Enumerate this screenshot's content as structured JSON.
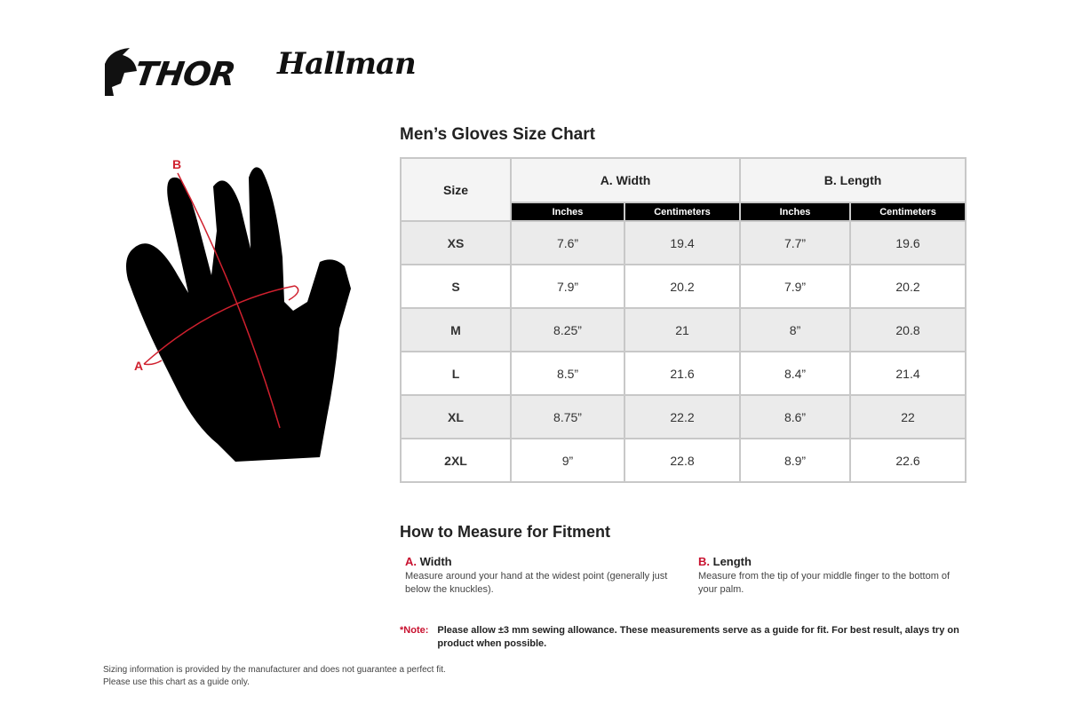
{
  "logos": {
    "thor": "THOR",
    "hallman": "Hallman"
  },
  "title": "Men’s Gloves Size Chart",
  "diagram": {
    "label_a": "A",
    "label_b": "B"
  },
  "table": {
    "size_header": "Size",
    "width_header": "A. Width",
    "length_header": "B. Length",
    "sub_headers": [
      "Inches",
      "Centimeters",
      "Inches",
      "Centimeters"
    ],
    "rows": [
      {
        "size": "XS",
        "w_in": "7.6”",
        "w_cm": "19.4",
        "l_in": "7.7”",
        "l_cm": "19.6"
      },
      {
        "size": "S",
        "w_in": "7.9”",
        "w_cm": "20.2",
        "l_in": "7.9”",
        "l_cm": "20.2"
      },
      {
        "size": "M",
        "w_in": "8.25”",
        "w_cm": "21",
        "l_in": "8”",
        "l_cm": "20.8"
      },
      {
        "size": "L",
        "w_in": "8.5”",
        "w_cm": "21.6",
        "l_in": "8.4”",
        "l_cm": "21.4"
      },
      {
        "size": "XL",
        "w_in": "8.75”",
        "w_cm": "22.2",
        "l_in": "8.6”",
        "l_cm": "22"
      },
      {
        "size": "2XL",
        "w_in": "9”",
        "w_cm": "22.8",
        "l_in": "8.9”",
        "l_cm": "22.6"
      }
    ]
  },
  "measure": {
    "title": "How to Measure for Fitment",
    "width": {
      "letter": "A.",
      "label": "Width",
      "desc": "Measure around your hand at the widest point (generally just below the knuckles)."
    },
    "length": {
      "letter": "B.",
      "label": "Length",
      "desc": "Measure from the tip of your middle finger to the bottom of your palm."
    }
  },
  "note": {
    "label": "*Note:",
    "text": "Please allow ±3 mm sewing allowance. These measurements serve as a guide for fit. For best result, alays try on product when possible."
  },
  "footer": [
    "Sizing information is provided by the manufacturer and does not guarantee a perfect fit.",
    "Please use this chart as a guide only."
  ],
  "colors": {
    "accent": "#c8102e",
    "header_bg": "#000000",
    "row_alt": "#ebebeb"
  }
}
